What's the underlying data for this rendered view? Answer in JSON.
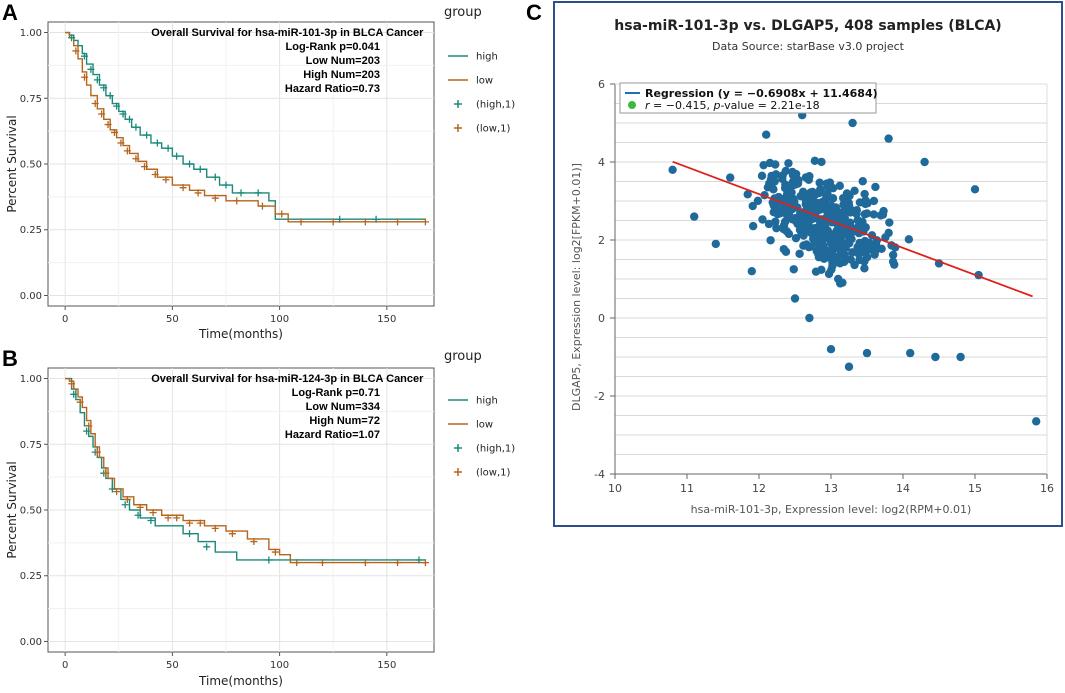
{
  "colors": {
    "high": "#1a8a7a",
    "low": "#b5651d",
    "dot": "#1f6a9a",
    "regression": "#e0201c",
    "panel_border": "#2e4d8f",
    "grid": "#e4e4e4"
  },
  "chart_data": [
    {
      "panel": "A",
      "type": "line",
      "kind": "kaplan-meier",
      "title": "Overall Survival for hsa-miR-101-3p in BLCA Cancer",
      "stats": [
        "Log-Rank p=0.041",
        "Low Num=203",
        "High Num=203",
        "Hazard Ratio=0.73"
      ],
      "xlabel": "Time(months)",
      "ylabel": "Percent Survival",
      "xlim": [
        -8,
        172
      ],
      "ylim": [
        -0.04,
        1.04
      ],
      "xticks": [
        0,
        50,
        100,
        150
      ],
      "yticks": [
        0.0,
        0.25,
        0.5,
        0.75,
        1.0
      ],
      "ytick_labels": [
        "0.00",
        "0.25",
        "0.50",
        "0.75",
        "1.00"
      ],
      "legend_title": "group",
      "legend": [
        "high",
        "low",
        "(high,1)",
        "(low,1)"
      ],
      "series": [
        {
          "name": "high",
          "steps": [
            [
              0,
              1.0
            ],
            [
              2,
              0.99
            ],
            [
              4,
              0.97
            ],
            [
              6,
              0.95
            ],
            [
              8,
              0.92
            ],
            [
              10,
              0.88
            ],
            [
              13,
              0.84
            ],
            [
              16,
              0.8
            ],
            [
              19,
              0.76
            ],
            [
              22,
              0.73
            ],
            [
              25,
              0.7
            ],
            [
              28,
              0.67
            ],
            [
              31,
              0.64
            ],
            [
              35,
              0.61
            ],
            [
              40,
              0.58
            ],
            [
              45,
              0.56
            ],
            [
              50,
              0.53
            ],
            [
              55,
              0.5
            ],
            [
              60,
              0.48
            ],
            [
              66,
              0.45
            ],
            [
              72,
              0.42
            ],
            [
              78,
              0.39
            ],
            [
              95,
              0.36
            ],
            [
              98,
              0.29
            ],
            [
              168,
              0.29
            ]
          ],
          "censor": [
            [
              3,
              0.98
            ],
            [
              9,
              0.91
            ],
            [
              12,
              0.86
            ],
            [
              15,
              0.82
            ],
            [
              18,
              0.79
            ],
            [
              21,
              0.76
            ],
            [
              24,
              0.72
            ],
            [
              27,
              0.69
            ],
            [
              30,
              0.67
            ],
            [
              33,
              0.64
            ],
            [
              38,
              0.61
            ],
            [
              43,
              0.58
            ],
            [
              48,
              0.56
            ],
            [
              52,
              0.53
            ],
            [
              58,
              0.5
            ],
            [
              63,
              0.48
            ],
            [
              70,
              0.45
            ],
            [
              75,
              0.42
            ],
            [
              82,
              0.39
            ],
            [
              90,
              0.39
            ],
            [
              128,
              0.29
            ],
            [
              145,
              0.29
            ]
          ]
        },
        {
          "name": "low",
          "steps": [
            [
              0,
              1.0
            ],
            [
              2,
              0.98
            ],
            [
              4,
              0.95
            ],
            [
              6,
              0.9
            ],
            [
              8,
              0.85
            ],
            [
              10,
              0.8
            ],
            [
              12,
              0.76
            ],
            [
              15,
              0.71
            ],
            [
              18,
              0.67
            ],
            [
              21,
              0.63
            ],
            [
              24,
              0.6
            ],
            [
              27,
              0.57
            ],
            [
              30,
              0.54
            ],
            [
              34,
              0.51
            ],
            [
              38,
              0.48
            ],
            [
              43,
              0.45
            ],
            [
              50,
              0.42
            ],
            [
              58,
              0.4
            ],
            [
              65,
              0.38
            ],
            [
              75,
              0.36
            ],
            [
              90,
              0.34
            ],
            [
              98,
              0.31
            ],
            [
              104,
              0.28
            ],
            [
              168,
              0.28
            ]
          ],
          "censor": [
            [
              5,
              0.93
            ],
            [
              9,
              0.83
            ],
            [
              14,
              0.73
            ],
            [
              17,
              0.69
            ],
            [
              20,
              0.65
            ],
            [
              23,
              0.62
            ],
            [
              26,
              0.58
            ],
            [
              29,
              0.55
            ],
            [
              33,
              0.52
            ],
            [
              37,
              0.49
            ],
            [
              42,
              0.46
            ],
            [
              47,
              0.44
            ],
            [
              55,
              0.41
            ],
            [
              62,
              0.39
            ],
            [
              70,
              0.37
            ],
            [
              80,
              0.36
            ],
            [
              92,
              0.34
            ],
            [
              101,
              0.31
            ],
            [
              110,
              0.28
            ],
            [
              125,
              0.28
            ],
            [
              140,
              0.28
            ],
            [
              155,
              0.28
            ],
            [
              168,
              0.28
            ]
          ]
        }
      ]
    },
    {
      "panel": "B",
      "type": "line",
      "kind": "kaplan-meier",
      "title": "Overall Survival for hsa-miR-124-3p in BLCA Cancer",
      "stats": [
        "Log-Rank p=0.71",
        "Low Num=334",
        "High Num=72",
        "Hazard Ratio=1.07"
      ],
      "xlabel": "Time(months)",
      "ylabel": "Percent Survival",
      "xlim": [
        -8,
        172
      ],
      "ylim": [
        -0.04,
        1.04
      ],
      "xticks": [
        0,
        50,
        100,
        150
      ],
      "yticks": [
        0.0,
        0.25,
        0.5,
        0.75,
        1.0
      ],
      "ytick_labels": [
        "0.00",
        "0.25",
        "0.50",
        "0.75",
        "1.00"
      ],
      "legend_title": "group",
      "legend": [
        "high",
        "low",
        "(high,1)",
        "(low,1)"
      ],
      "series": [
        {
          "name": "high",
          "steps": [
            [
              0,
              1.0
            ],
            [
              3,
              0.96
            ],
            [
              5,
              0.92
            ],
            [
              7,
              0.87
            ],
            [
              9,
              0.82
            ],
            [
              11,
              0.78
            ],
            [
              13,
              0.74
            ],
            [
              15,
              0.7
            ],
            [
              17,
              0.66
            ],
            [
              19,
              0.62
            ],
            [
              22,
              0.58
            ],
            [
              26,
              0.54
            ],
            [
              30,
              0.5
            ],
            [
              35,
              0.47
            ],
            [
              42,
              0.44
            ],
            [
              55,
              0.41
            ],
            [
              62,
              0.38
            ],
            [
              70,
              0.34
            ],
            [
              80,
              0.31
            ],
            [
              168,
              0.31
            ]
          ],
          "censor": [
            [
              4,
              0.94
            ],
            [
              10,
              0.8
            ],
            [
              14,
              0.72
            ],
            [
              18,
              0.64
            ],
            [
              22,
              0.58
            ],
            [
              28,
              0.52
            ],
            [
              34,
              0.48
            ],
            [
              40,
              0.46
            ],
            [
              58,
              0.41
            ],
            [
              66,
              0.36
            ],
            [
              95,
              0.31
            ],
            [
              165,
              0.31
            ]
          ]
        },
        {
          "name": "low",
          "steps": [
            [
              0,
              1.0
            ],
            [
              2,
              0.99
            ],
            [
              4,
              0.96
            ],
            [
              6,
              0.93
            ],
            [
              8,
              0.89
            ],
            [
              10,
              0.84
            ],
            [
              12,
              0.79
            ],
            [
              14,
              0.74
            ],
            [
              16,
              0.7
            ],
            [
              18,
              0.66
            ],
            [
              20,
              0.62
            ],
            [
              23,
              0.58
            ],
            [
              27,
              0.55
            ],
            [
              32,
              0.52
            ],
            [
              38,
              0.5
            ],
            [
              45,
              0.48
            ],
            [
              55,
              0.46
            ],
            [
              65,
              0.44
            ],
            [
              75,
              0.42
            ],
            [
              85,
              0.39
            ],
            [
              95,
              0.35
            ],
            [
              100,
              0.33
            ],
            [
              105,
              0.3
            ],
            [
              168,
              0.3
            ]
          ],
          "censor": [
            [
              3,
              0.98
            ],
            [
              7,
              0.91
            ],
            [
              11,
              0.82
            ],
            [
              15,
              0.72
            ],
            [
              19,
              0.64
            ],
            [
              24,
              0.57
            ],
            [
              29,
              0.54
            ],
            [
              35,
              0.51
            ],
            [
              41,
              0.49
            ],
            [
              48,
              0.47
            ],
            [
              52,
              0.47
            ],
            [
              58,
              0.45
            ],
            [
              63,
              0.45
            ],
            [
              70,
              0.43
            ],
            [
              78,
              0.41
            ],
            [
              88,
              0.38
            ],
            [
              98,
              0.34
            ],
            [
              108,
              0.3
            ],
            [
              120,
              0.3
            ],
            [
              140,
              0.3
            ],
            [
              155,
              0.3
            ],
            [
              168,
              0.3
            ]
          ]
        }
      ]
    },
    {
      "panel": "C",
      "type": "scatter",
      "title": "hsa-miR-101-3p vs. DLGAP5, 408 samples (BLCA)",
      "subtitle": "Data Source: starBase v3.0 project",
      "xlabel": "hsa-miR-101-3p, Expression level: log2(RPM+0.01)",
      "ylabel": "DLGAP5, Expression level: log2[FPKM+0.01)]",
      "xlim": [
        10,
        16
      ],
      "ylim": [
        -4,
        6
      ],
      "xticks": [
        10,
        11,
        12,
        13,
        14,
        15,
        16
      ],
      "yticks": [
        -4,
        -2,
        0,
        2,
        4,
        6
      ],
      "legend": {
        "regression_label": "Regression",
        "regression_eq": "(y = −0.6908x + 11.4684)",
        "r_label": "r",
        "r_value": "= −0.415,",
        "p_label": "p",
        "p_value": "-value = 2.21e-18"
      },
      "regression": {
        "slope": -0.6908,
        "intercept": 11.4684,
        "x_range": [
          10.8,
          15.8
        ]
      },
      "highlight_points": [
        [
          10.8,
          3.8
        ],
        [
          11.1,
          2.6
        ],
        [
          11.4,
          1.9
        ],
        [
          11.6,
          3.6
        ],
        [
          11.9,
          1.2
        ],
        [
          12.1,
          4.7
        ],
        [
          12.2,
          3.3
        ],
        [
          12.5,
          0.5
        ],
        [
          12.6,
          5.2
        ],
        [
          12.7,
          0.0
        ],
        [
          13.0,
          -0.8
        ],
        [
          13.1,
          1.0
        ],
        [
          13.25,
          -1.25
        ],
        [
          13.3,
          5.0
        ],
        [
          13.5,
          -0.9
        ],
        [
          13.8,
          4.6
        ],
        [
          14.1,
          -0.9
        ],
        [
          14.3,
          4.0
        ],
        [
          14.5,
          1.4
        ],
        [
          14.8,
          -1.0
        ],
        [
          15.0,
          3.3
        ],
        [
          15.05,
          1.1
        ],
        [
          14.45,
          -1.0
        ],
        [
          15.85,
          -2.65
        ]
      ],
      "cloud": {
        "count": 384,
        "x_mean": 12.9,
        "x_sd": 0.55,
        "y_mean": 2.6,
        "y_sd": 1.0,
        "seed": 7
      }
    }
  ]
}
